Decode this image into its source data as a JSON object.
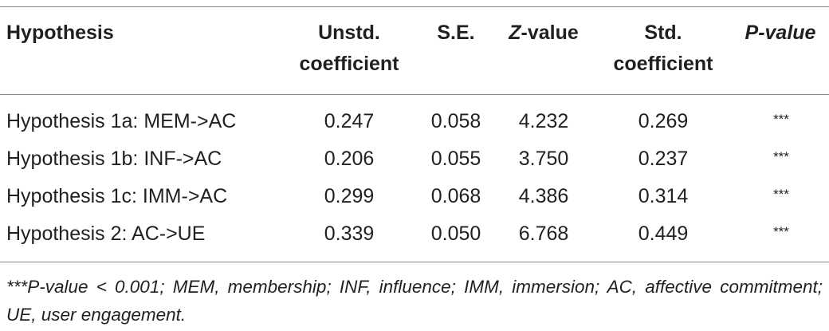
{
  "table": {
    "headers": {
      "hypothesis": "Hypothesis",
      "unstd_line1": "Unstd.",
      "unstd_line2": "coefficient",
      "se": "S.E.",
      "z_letter": "Z",
      "z_rest": "-value",
      "std_line1": "Std.",
      "std_line2": "coefficient",
      "p_value": "P-value"
    },
    "rows": [
      {
        "hypothesis": "Hypothesis 1a: MEM->AC",
        "unstd": "0.247",
        "se": "0.058",
        "z": "4.232",
        "std": "0.269",
        "p": "***"
      },
      {
        "hypothesis": "Hypothesis 1b: INF->AC",
        "unstd": "0.206",
        "se": "0.055",
        "z": "3.750",
        "std": "0.237",
        "p": "***"
      },
      {
        "hypothesis": "Hypothesis 1c: IMM->AC",
        "unstd": "0.299",
        "se": "0.068",
        "z": "4.386",
        "std": "0.314",
        "p": "***"
      },
      {
        "hypothesis": "Hypothesis 2: AC->UE",
        "unstd": "0.339",
        "se": "0.050",
        "z": "6.768",
        "std": "0.449",
        "p": "***"
      }
    ],
    "footnote": "***P-value < 0.001; MEM, membership; INF, influence; IMM, immersion; AC, affective commitment; UE, user engagement."
  }
}
